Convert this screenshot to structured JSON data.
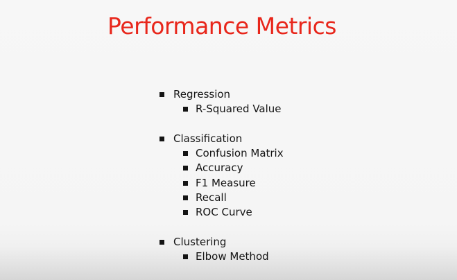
{
  "slide": {
    "title": "Performance Metrics",
    "title_color": "#e8261b",
    "sections": [
      {
        "heading": "Regression",
        "items": [
          "R-Squared Value"
        ]
      },
      {
        "heading": "Classification",
        "items": [
          "Confusion Matrix",
          "Accuracy",
          "F1 Measure",
          "Recall",
          "ROC Curve"
        ]
      },
      {
        "heading": "Clustering",
        "items": [
          "Elbow Method"
        ]
      }
    ],
    "bullet_icon": "square-bullet-icon"
  }
}
